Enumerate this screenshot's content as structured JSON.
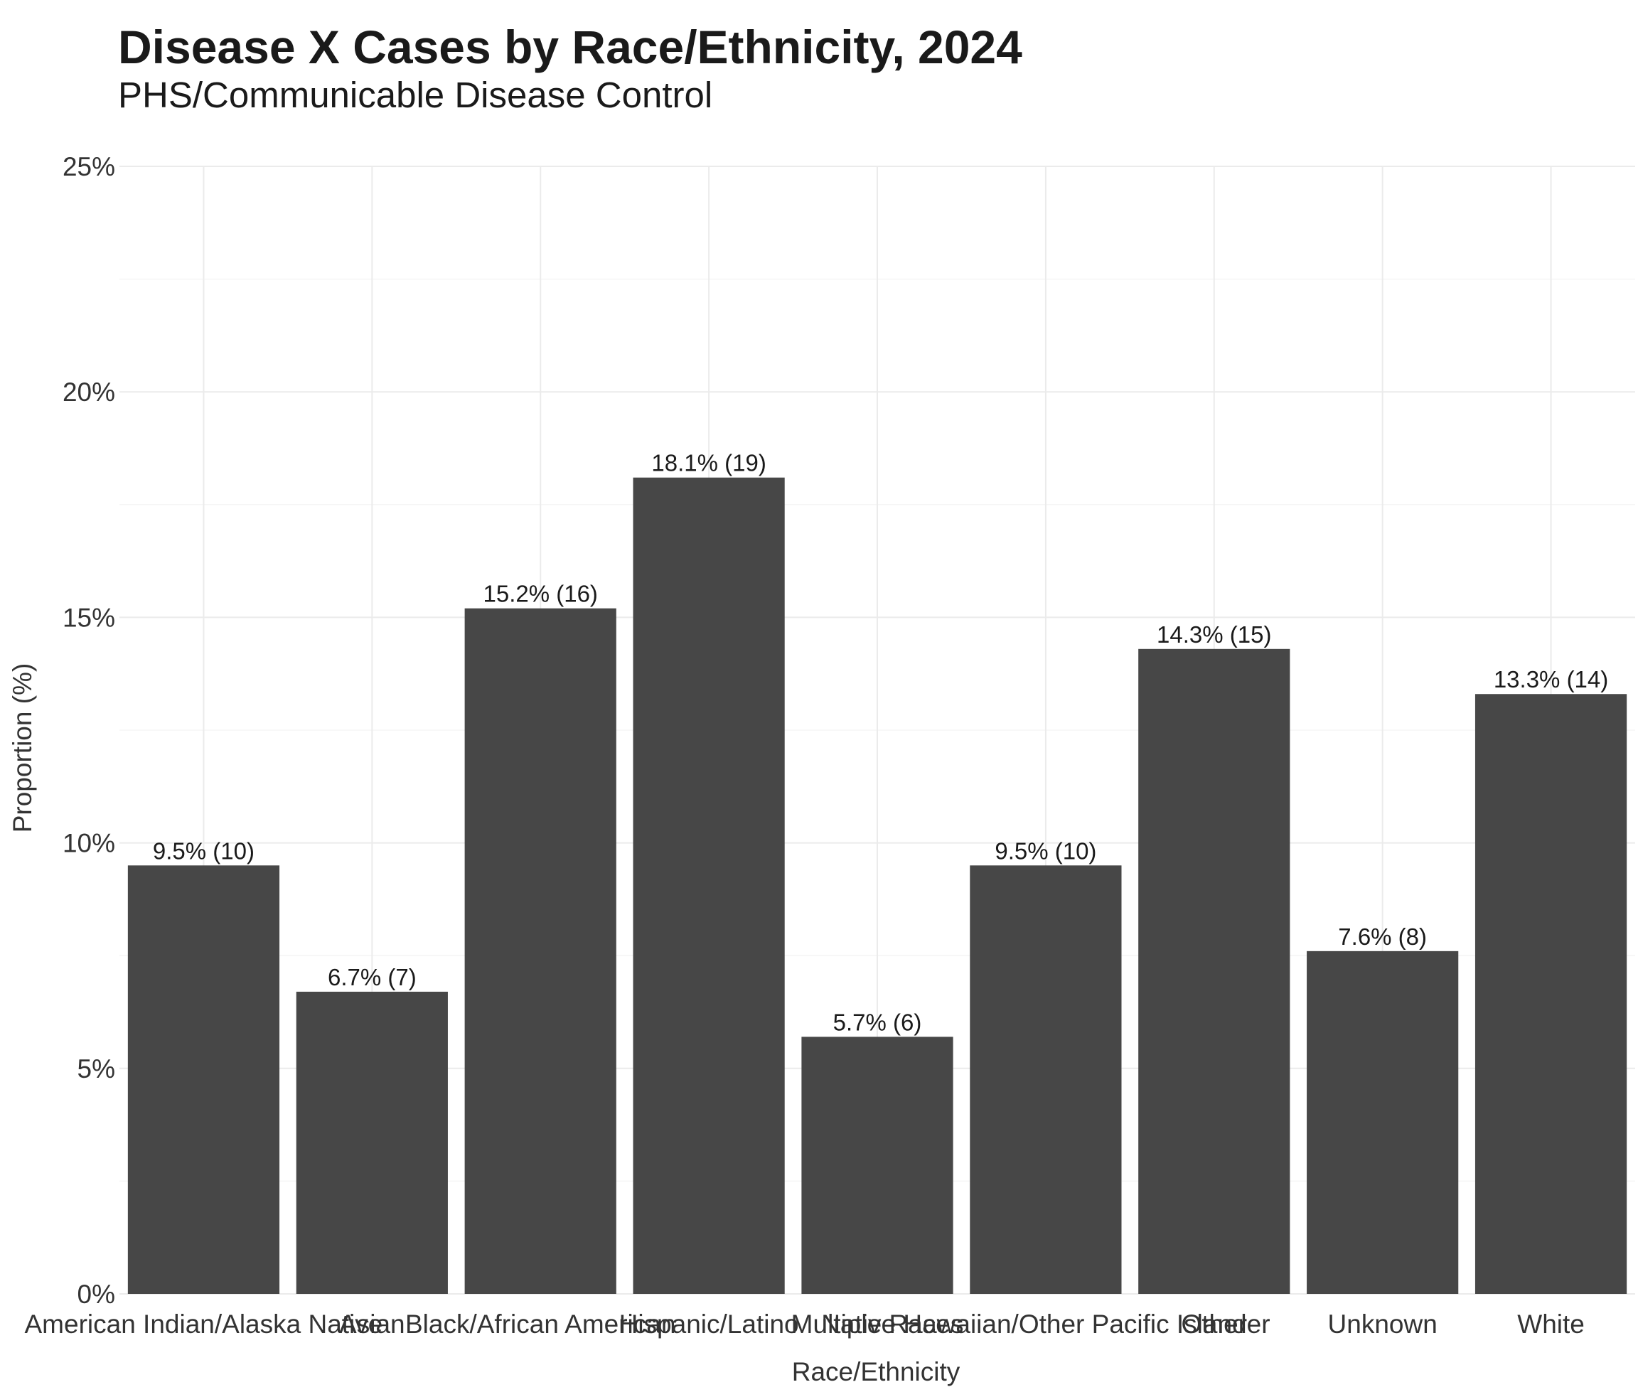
{
  "chart_data": {
    "type": "bar",
    "title": "Disease X Cases by Race/Ethnicity, 2024",
    "subtitle": "PHS/Communicable Disease Control",
    "xlabel": "Race/Ethnicity",
    "ylabel": "Proportion (%)",
    "ylim": [
      0,
      25
    ],
    "yticks": [
      0,
      5,
      10,
      15,
      20,
      25
    ],
    "ytick_labels": [
      "0%",
      "5%",
      "10%",
      "15%",
      "20%",
      "25%"
    ],
    "grid": true,
    "bar_color": "#474747",
    "categories": [
      "American Indian/Alaska Native",
      "Asian",
      "Black/African American",
      "Hispanic/Latino",
      "Multiple Races",
      "Native Hawaiian/Other Pacific Islander",
      "Other",
      "Unknown",
      "White"
    ],
    "values": [
      9.5,
      6.7,
      15.2,
      18.1,
      5.7,
      9.5,
      14.3,
      7.6,
      13.3
    ],
    "counts": [
      10,
      7,
      16,
      19,
      6,
      10,
      15,
      8,
      14
    ],
    "data_labels": [
      "9.5% (10)",
      "6.7% (7)",
      "15.2% (16)",
      "18.1% (19)",
      "5.7% (6)",
      "9.5% (10)",
      "14.3% (15)",
      "7.6% (8)",
      "13.3% (14)"
    ]
  }
}
